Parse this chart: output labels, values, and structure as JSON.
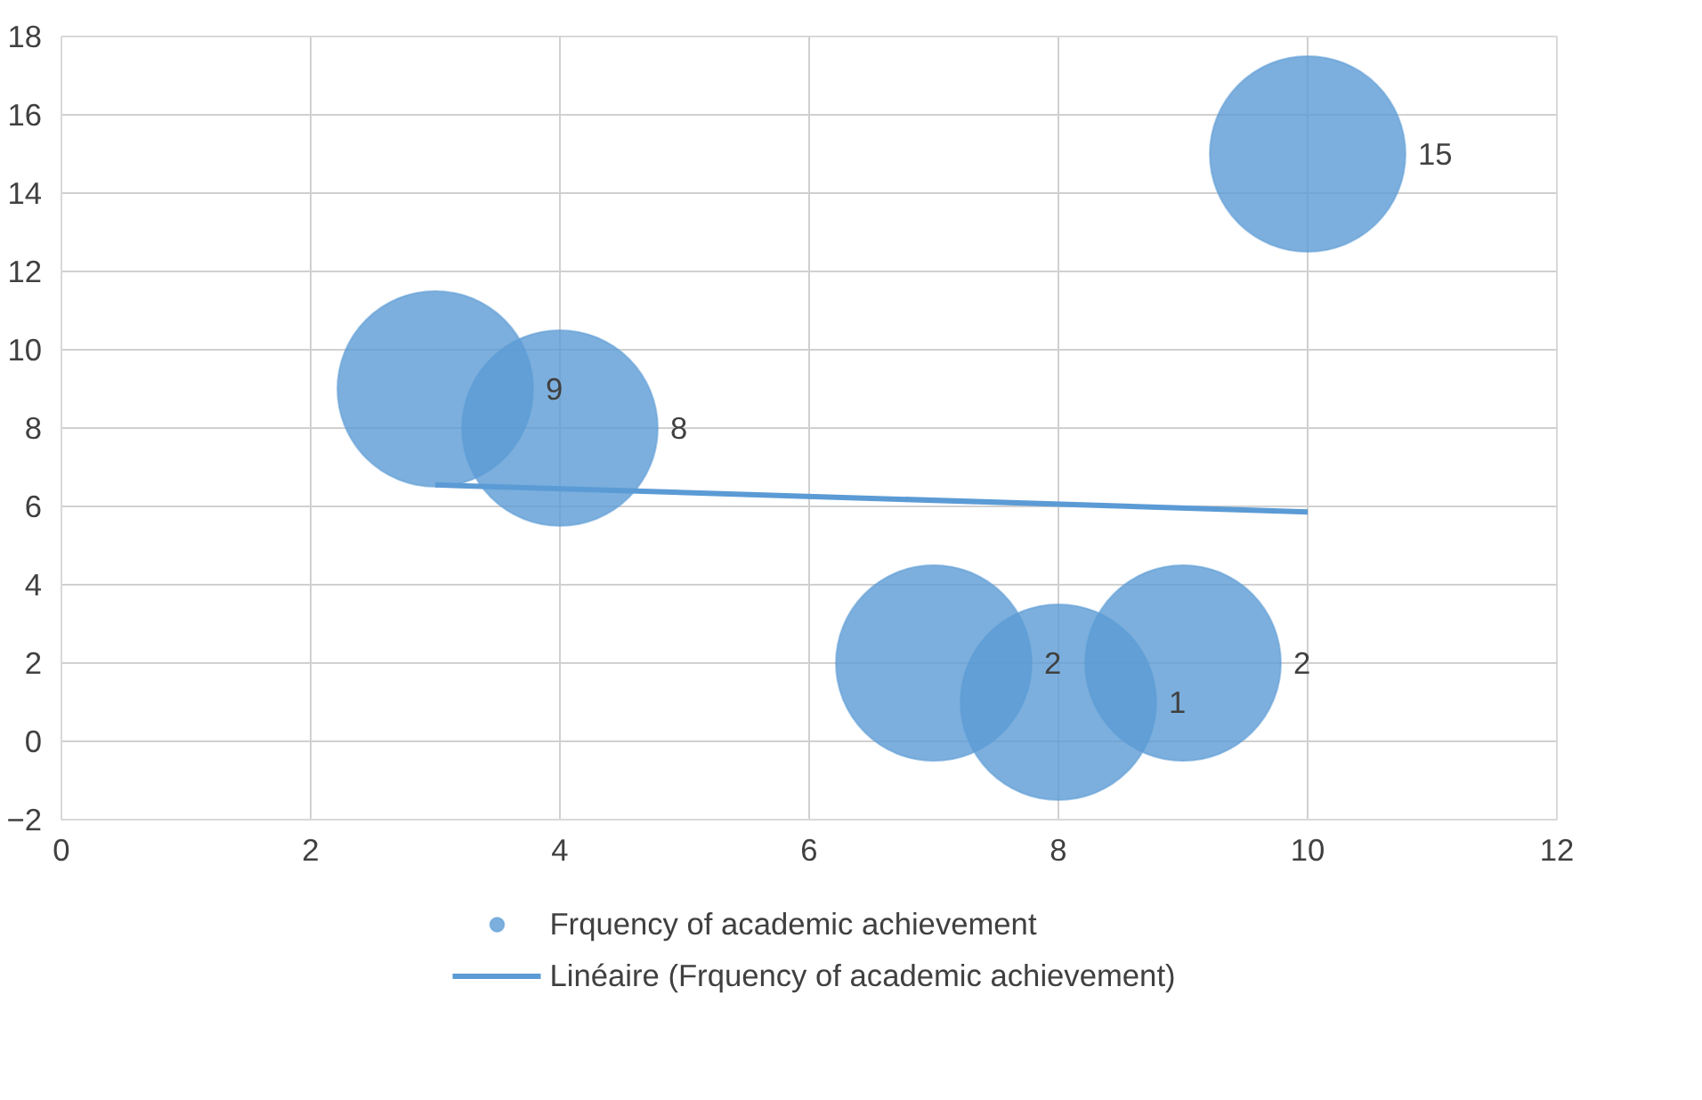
{
  "chart_data": {
    "type": "bubble",
    "x": [
      3,
      4,
      7,
      8,
      9,
      10
    ],
    "series": [
      {
        "name": "Frquency of academic achievement",
        "color": "#5b9bd5",
        "values": [
          9,
          8,
          2,
          1,
          2,
          15
        ],
        "sizes": [
          1,
          1,
          1,
          1,
          1,
          1
        ],
        "value_labels": [
          "9",
          "8",
          "2",
          "1",
          "2",
          "15"
        ]
      },
      {
        "name": "Linéaire (Frquency of academic achievement)",
        "type": "line",
        "color": "#5b9bd5",
        "x": [
          3,
          10
        ],
        "values": [
          6.55,
          5.86
        ]
      }
    ],
    "xlim": [
      0,
      12
    ],
    "xticks": [
      0,
      2,
      4,
      6,
      8,
      10,
      12
    ],
    "ylim": [
      -2,
      18
    ],
    "yticks": [
      -2,
      0,
      2,
      4,
      6,
      8,
      10,
      12,
      14,
      16,
      18
    ],
    "grid": true,
    "legend": "bottom"
  }
}
